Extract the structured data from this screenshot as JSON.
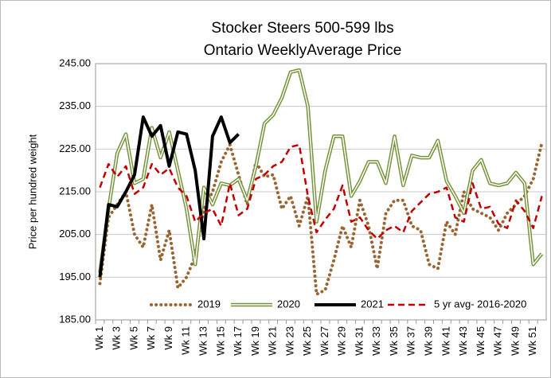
{
  "chart_data": {
    "type": "line",
    "title": "Stocker Steers 500-599 lbs",
    "subtitle": "Ontario WeeklyAverage Price",
    "y_label": "Price per hundred weight",
    "categories": [
      "Wk 1",
      null,
      "Wk 3",
      null,
      "Wk 5",
      null,
      "Wk 7",
      null,
      "Wk 9",
      null,
      "Wk 11",
      null,
      "Wk 13",
      null,
      "Wk 15",
      null,
      "Wk 17",
      null,
      "Wk 19",
      null,
      "Wk 21",
      null,
      "Wk 23",
      null,
      "Wk 25",
      null,
      "Wk 27",
      null,
      "Wk 29",
      null,
      "Wk 31",
      null,
      "Wk 33",
      null,
      "Wk 35",
      null,
      "Wk 37",
      null,
      "Wk 39",
      null,
      "Wk 41",
      null,
      "Wk 43",
      null,
      "Wk 45",
      null,
      "Wk 47",
      null,
      "Wk 49",
      null,
      "Wk 51",
      null
    ],
    "series": [
      {
        "name": "2019",
        "color": "#996633",
        "style": "dotted",
        "values": [
          193.5,
          209,
          212,
          215,
          205,
          202,
          212,
          199,
          206,
          192.5,
          195,
          200,
          211,
          215,
          222,
          226,
          219,
          212,
          222,
          218.5,
          219,
          211,
          214,
          207,
          214,
          191,
          192,
          199,
          207,
          202,
          213,
          207,
          197,
          210,
          213,
          213,
          207,
          206,
          198,
          197,
          208,
          205,
          215,
          211,
          210,
          209,
          206,
          210,
          212,
          214,
          218,
          226.5
        ]
      },
      {
        "name": "2020",
        "color": "#77933c",
        "style": "double",
        "values": [
          196,
          211,
          224,
          228.5,
          217,
          218,
          230,
          223,
          229,
          220,
          211,
          198,
          216,
          212,
          217,
          216.5,
          218,
          213,
          221,
          231,
          233,
          237,
          243,
          243.5,
          235,
          208,
          220,
          228,
          228,
          214,
          217.5,
          222,
          222,
          217,
          228,
          216.5,
          223.5,
          223,
          223,
          227,
          217.5,
          214,
          210,
          220,
          222.5,
          217,
          216.5,
          217,
          219.5,
          217,
          198,
          200.5
        ]
      },
      {
        "name": "2021",
        "color": "#000000",
        "style": "thick",
        "values": [
          195,
          212,
          211.5,
          215,
          219,
          232.5,
          228,
          230.5,
          221,
          229,
          228.5,
          220,
          204,
          228,
          232.5,
          226.5,
          228.5,
          null,
          null,
          null,
          null,
          null,
          null,
          null,
          null,
          null,
          null,
          null,
          null,
          null,
          null,
          null,
          null,
          null,
          null,
          null,
          null,
          null,
          null,
          null,
          null,
          null,
          null,
          null,
          null,
          null,
          null,
          null,
          null,
          null,
          null,
          null
        ]
      },
      {
        "name": "5 yr avg- 2016-2020",
        "color": "#c00000",
        "style": "dashed",
        "values": [
          216,
          221.5,
          218.5,
          221,
          214.5,
          216,
          221.5,
          219,
          220.5,
          216,
          214,
          208,
          210,
          211,
          207,
          217,
          209.5,
          211,
          218,
          219,
          221,
          222,
          225.5,
          226,
          214,
          205.5,
          208.5,
          211,
          216.5,
          208,
          209,
          206,
          204,
          206,
          207,
          205.5,
          210.5,
          212.5,
          214.5,
          215,
          216,
          209,
          208,
          217,
          211,
          211.5,
          207.5,
          206.5,
          213,
          210.5,
          206.5,
          214
        ]
      }
    ],
    "ylim": [
      185,
      245
    ],
    "yticks": [
      {
        "value": 185,
        "label": "185.00"
      },
      {
        "value": 195,
        "label": "195.00"
      },
      {
        "value": 205,
        "label": "205.00"
      },
      {
        "value": 215,
        "label": "215.00"
      },
      {
        "value": 225,
        "label": "225.00"
      },
      {
        "value": 235,
        "label": "235.00"
      },
      {
        "value": 245,
        "label": "245.00"
      }
    ],
    "grid": true,
    "legend": "bottom"
  }
}
